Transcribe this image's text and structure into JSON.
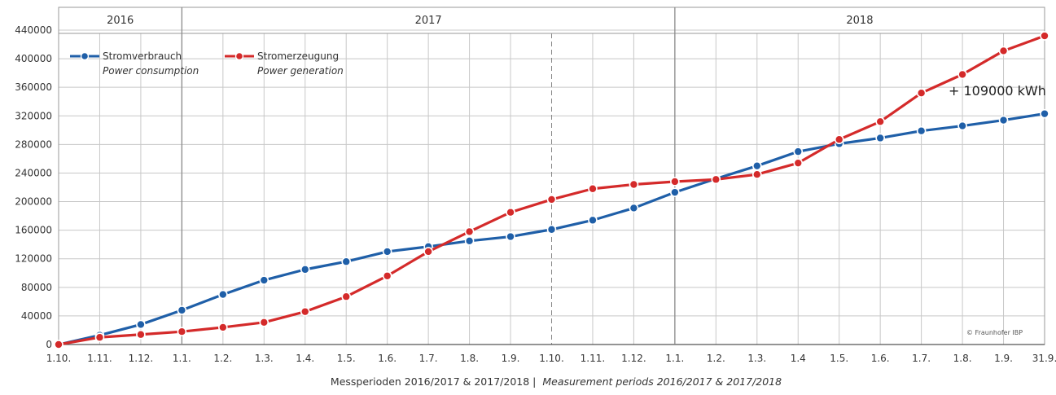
{
  "chart_data": {
    "type": "line",
    "year_bands": [
      {
        "label": "2016",
        "from": 0,
        "to": 3
      },
      {
        "label": "2017",
        "from": 3,
        "to": 15
      },
      {
        "label": "2018",
        "from": 15,
        "to": 24
      }
    ],
    "categories": [
      "1.10.",
      "1.11.",
      "1.12.",
      "1.1.",
      "1.2.",
      "1.3.",
      "1.4.",
      "1.5.",
      "1.6.",
      "1.7.",
      "1.8.",
      "1.9.",
      "1.10.",
      "1.11.",
      "1.12.",
      "1.1.",
      "1.2.",
      "1.3.",
      "1.4",
      "1.5.",
      "1.6.",
      "1.7.",
      "1.8.",
      "1.9.",
      "31.9."
    ],
    "series": [
      {
        "name": "Stromverbrauch",
        "name_en": "Power consumption",
        "color": "#1f5fa8",
        "values": [
          0,
          13000,
          28000,
          48000,
          70000,
          90000,
          105000,
          116000,
          130000,
          137000,
          145000,
          151000,
          161000,
          174000,
          191000,
          213000,
          232000,
          250000,
          270000,
          281000,
          289000,
          299000,
          306000,
          314000,
          323000
        ]
      },
      {
        "name": "Stromerzeugung",
        "name_en": "Power generation",
        "color": "#d42a2a",
        "values": [
          0,
          10000,
          14000,
          18000,
          24000,
          31000,
          46000,
          67000,
          96000,
          130000,
          158000,
          185000,
          203000,
          218000,
          224000,
          228000,
          231000,
          238000,
          254000,
          287000,
          312000,
          352000,
          378000,
          411000,
          432000
        ]
      }
    ],
    "ylim": [
      0,
      440000
    ],
    "yticks": [
      "0",
      "40000",
      "80000",
      "120000",
      "160000",
      "200000",
      "240000",
      "280000",
      "320000",
      "360000",
      "400000",
      "440000"
    ],
    "xlabel": "Messperioden 2016/2017 & 2017/2018 |",
    "xlabel_en": "Measurement periods 2016/2017 & 2017/2018",
    "annotation": "+ 109000 kWh",
    "credit": "© Fraunhofer IBP",
    "grid": true,
    "legend_position": "top-left",
    "dashed_divider_index": 12
  }
}
